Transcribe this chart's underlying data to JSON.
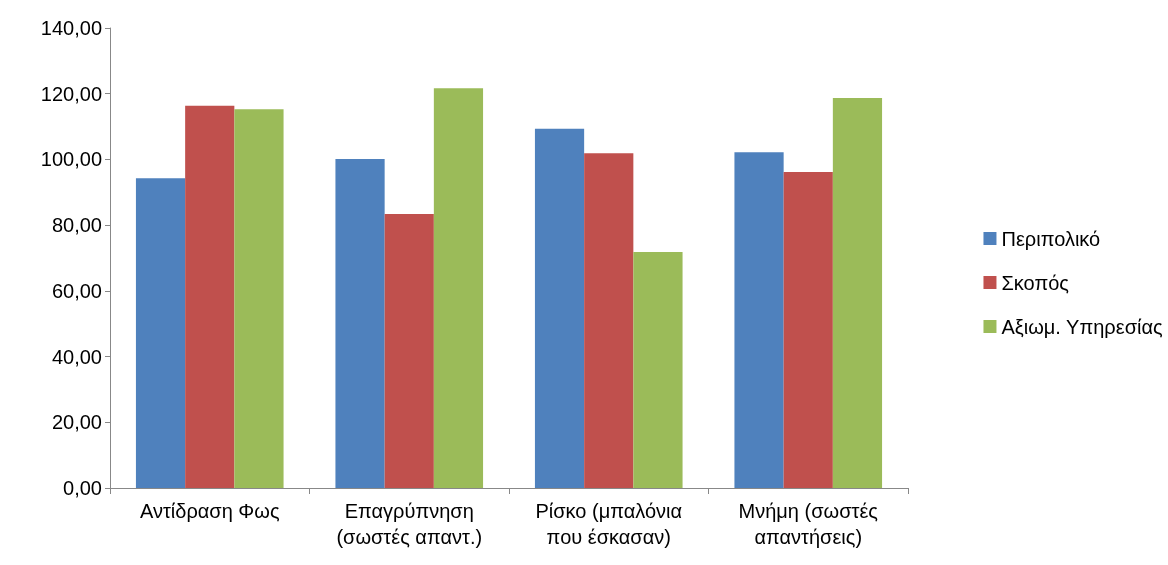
{
  "chart_data": {
    "type": "bar",
    "categories": [
      "Αντίδραση Φως",
      "Επαγρύπνηση (σωστές απαντ.)",
      "Ρίσκο (μπαλόνια που έσκασαν)",
      "Μνήμη (σωστές απαντήσεις)"
    ],
    "series": [
      {
        "name": "Περιπολικό",
        "color": "#4f81bd",
        "values": [
          94.3,
          100.1,
          109.3,
          102.2
        ]
      },
      {
        "name": "Σκοπός",
        "color": "#c0504d",
        "values": [
          116.3,
          83.4,
          101.9,
          96.2
        ]
      },
      {
        "name": "Αξιωμ. Υπηρεσίας",
        "color": "#9bbb59",
        "values": [
          115.3,
          121.7,
          71.8,
          118.7
        ]
      }
    ],
    "ylim": [
      0,
      140
    ],
    "yticks": [
      {
        "value": 0,
        "label": "0,00"
      },
      {
        "value": 20,
        "label": "20,00"
      },
      {
        "value": 40,
        "label": "40,00"
      },
      {
        "value": 60,
        "label": "60,00"
      },
      {
        "value": 80,
        "label": "80,00"
      },
      {
        "value": 100,
        "label": "100,00"
      },
      {
        "value": 120,
        "label": "120,00"
      },
      {
        "value": 140,
        "label": "140,00"
      }
    ],
    "grid": false,
    "legend": "right"
  }
}
